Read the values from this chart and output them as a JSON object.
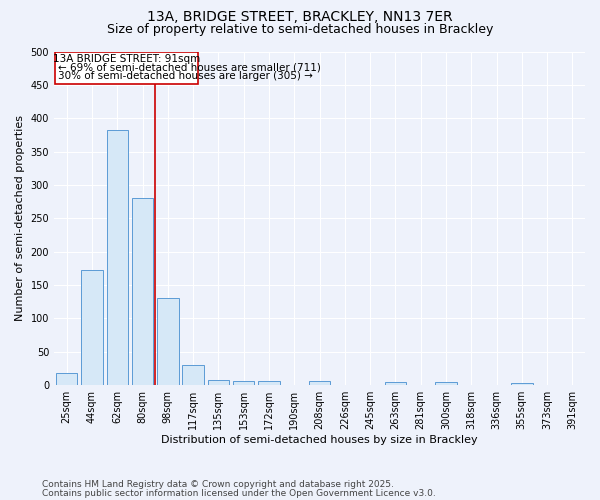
{
  "title1": "13A, BRIDGE STREET, BRACKLEY, NN13 7ER",
  "title2": "Size of property relative to semi-detached houses in Brackley",
  "xlabel": "Distribution of semi-detached houses by size in Brackley",
  "ylabel": "Number of semi-detached properties",
  "categories": [
    "25sqm",
    "44sqm",
    "62sqm",
    "80sqm",
    "98sqm",
    "117sqm",
    "135sqm",
    "153sqm",
    "172sqm",
    "190sqm",
    "208sqm",
    "226sqm",
    "245sqm",
    "263sqm",
    "281sqm",
    "300sqm",
    "318sqm",
    "336sqm",
    "355sqm",
    "373sqm",
    "391sqm"
  ],
  "values": [
    18,
    172,
    383,
    281,
    131,
    30,
    8,
    6,
    6,
    0,
    6,
    0,
    0,
    5,
    0,
    5,
    0,
    0,
    4,
    0,
    0
  ],
  "bar_color": "#d6e8f7",
  "bar_edge_color": "#5b9bd5",
  "vline_x": 3.5,
  "vline_color": "#cc0000",
  "annotation_title": "13A BRIDGE STREET: 91sqm",
  "annotation_line1": "← 69% of semi-detached houses are smaller (711)",
  "annotation_line2": "30% of semi-detached houses are larger (305) →",
  "annotation_box_edgecolor": "#cc0000",
  "annotation_fill": "#ffffff",
  "ylim": [
    0,
    500
  ],
  "yticks": [
    0,
    50,
    100,
    150,
    200,
    250,
    300,
    350,
    400,
    450,
    500
  ],
  "footnote1": "Contains HM Land Registry data © Crown copyright and database right 2025.",
  "footnote2": "Contains public sector information licensed under the Open Government Licence v3.0.",
  "bg_color": "#eef2fb",
  "grid_color": "#ffffff",
  "title1_fontsize": 10,
  "title2_fontsize": 9,
  "axis_label_fontsize": 8,
  "tick_fontsize": 7,
  "annotation_fontsize": 7.5,
  "footnote_fontsize": 6.5
}
